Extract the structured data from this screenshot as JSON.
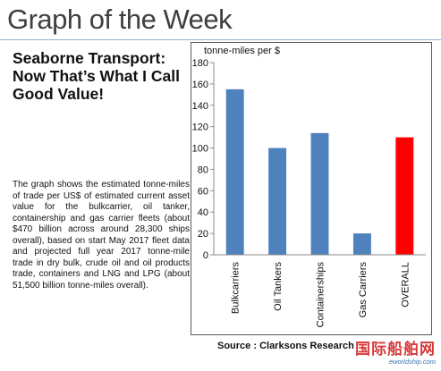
{
  "header": {
    "title": "Graph of the Week"
  },
  "article": {
    "headline": "Seaborne Transport: Now That’s What I Call Good Value!",
    "body": "The graph shows the estimated tonne-miles of trade per US$ of estimated current asset value for the bulkcarrier, oil tanker, containership and gas carrier fleets (about $470 billion across around 28,300 ships overall), based on start May 2017 fleet data and projected full year 2017 tonne-mile trade in dry bulk, crude oil and oil products trade, containers and LNG and LPG (about 51,500 billion tonne-miles overall)."
  },
  "chart_data": {
    "type": "bar",
    "title": "",
    "ylabel": "tonne-miles per $",
    "xlabel": "",
    "categories": [
      "Bulkcarriers",
      "Oil Tankers",
      "Containerships",
      "Gas Carriers",
      "OVERALL"
    ],
    "values": [
      155,
      100,
      114,
      20,
      110
    ],
    "colors": [
      "#4f81bd",
      "#4f81bd",
      "#4f81bd",
      "#4f81bd",
      "#ff0000"
    ],
    "ylim": [
      0,
      180
    ],
    "yticks": [
      0,
      20,
      40,
      60,
      80,
      100,
      120,
      140,
      160,
      180
    ],
    "grid": false,
    "legend": "none"
  },
  "source": {
    "label": "Source : Clarksons Research"
  },
  "watermark": {
    "text": "国际船舶网",
    "url": "eworldship.com"
  }
}
